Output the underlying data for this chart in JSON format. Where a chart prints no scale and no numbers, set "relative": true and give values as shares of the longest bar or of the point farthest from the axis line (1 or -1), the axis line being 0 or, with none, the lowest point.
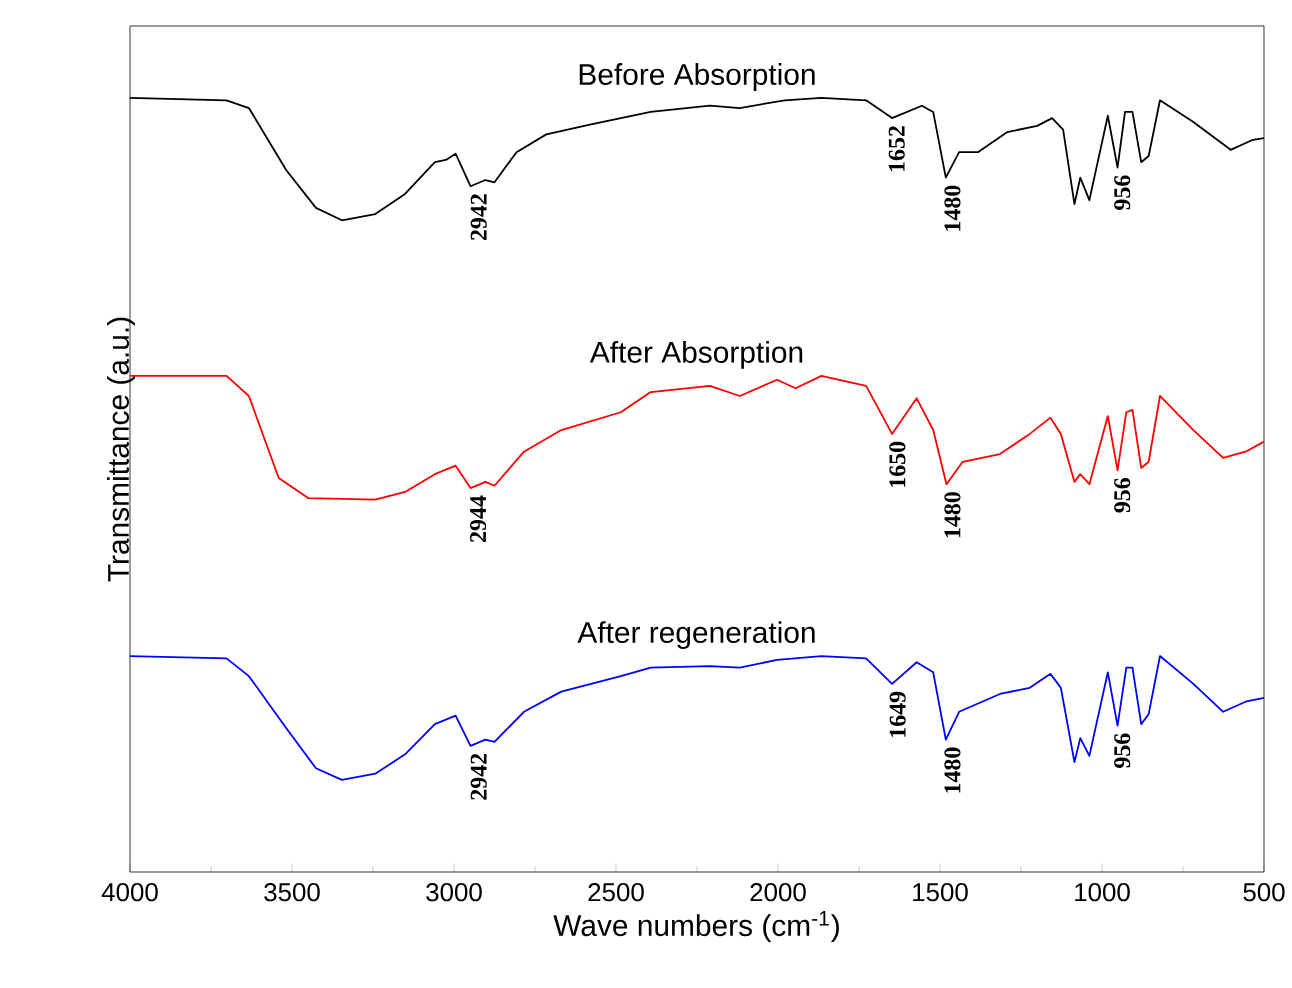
{
  "chart_data": {
    "type": "line",
    "relative": true,
    "xlabel": "Wave numbers (cm$^{-1}$)",
    "ylabel": "Transmittance (a.u.)",
    "xlim": [
      4000,
      500
    ],
    "xticks": [
      4000,
      3500,
      3000,
      2500,
      2000,
      1500,
      1000,
      500
    ],
    "series": [
      {
        "name": "Before Absorption",
        "color": "#000000",
        "x": [
          4000,
          3702,
          3633,
          3518,
          3426,
          3346,
          3243,
          3151,
          3059,
          3025,
          2995,
          2949,
          2903,
          2875,
          2807,
          2715,
          2577,
          2393,
          2210,
          2118,
          1980,
          1866,
          1728,
          1648,
          1556,
          1521,
          1482,
          1441,
          1383,
          1292,
          1200,
          1154,
          1120,
          1085,
          1067,
          1039,
          982,
          952,
          929,
          906,
          879,
          856,
          821,
          718,
          603,
          534,
          500
        ],
        "values": [
          1.0,
          0.997,
          0.987,
          0.907,
          0.858,
          0.842,
          0.85,
          0.876,
          0.917,
          0.92,
          0.928,
          0.886,
          0.894,
          0.891,
          0.93,
          0.953,
          0.966,
          0.982,
          0.99,
          0.987,
          0.997,
          1.0,
          0.997,
          0.974,
          0.99,
          0.982,
          0.897,
          0.93,
          0.93,
          0.956,
          0.964,
          0.974,
          0.959,
          0.863,
          0.897,
          0.868,
          0.977,
          0.91,
          0.982,
          0.982,
          0.917,
          0.925,
          0.997,
          0.969,
          0.933,
          0.946,
          0.948
        ]
      },
      {
        "name": "After Absorption",
        "color": "#ff0000",
        "x": [
          4000,
          3702,
          3633,
          3541,
          3449,
          3243,
          3151,
          3059,
          2995,
          2949,
          2903,
          2875,
          2784,
          2669,
          2485,
          2393,
          2210,
          2118,
          2003,
          1946,
          1866,
          1728,
          1648,
          1572,
          1521,
          1480,
          1430,
          1315,
          1223,
          1159,
          1127,
          1085,
          1067,
          1039,
          982,
          952,
          925,
          906,
          879,
          856,
          821,
          718,
          626,
          557,
          500
        ],
        "values": [
          0.641,
          0.641,
          0.615,
          0.509,
          0.483,
          0.481,
          0.491,
          0.514,
          0.525,
          0.496,
          0.504,
          0.499,
          0.543,
          0.571,
          0.594,
          0.62,
          0.628,
          0.615,
          0.636,
          0.625,
          0.641,
          0.628,
          0.566,
          0.612,
          0.571,
          0.501,
          0.53,
          0.54,
          0.566,
          0.587,
          0.566,
          0.504,
          0.514,
          0.501,
          0.589,
          0.519,
          0.594,
          0.597,
          0.522,
          0.53,
          0.615,
          0.571,
          0.535,
          0.543,
          0.556
        ]
      },
      {
        "name": "After regeneration",
        "color": "#0000ff",
        "x": [
          4000,
          3702,
          3633,
          3518,
          3426,
          3346,
          3243,
          3151,
          3059,
          2995,
          2949,
          2903,
          2875,
          2784,
          2669,
          2485,
          2393,
          2210,
          2118,
          2003,
          1866,
          1728,
          1648,
          1572,
          1521,
          1482,
          1441,
          1315,
          1223,
          1159,
          1127,
          1085,
          1067,
          1039,
          982,
          952,
          925,
          906,
          879,
          856,
          821,
          718,
          626,
          557,
          500
        ],
        "values": [
          0.279,
          0.276,
          0.253,
          0.186,
          0.134,
          0.119,
          0.127,
          0.152,
          0.191,
          0.202,
          0.163,
          0.171,
          0.168,
          0.207,
          0.233,
          0.253,
          0.264,
          0.266,
          0.264,
          0.274,
          0.279,
          0.276,
          0.243,
          0.271,
          0.258,
          0.171,
          0.207,
          0.23,
          0.238,
          0.256,
          0.238,
          0.142,
          0.173,
          0.15,
          0.258,
          0.189,
          0.264,
          0.264,
          0.191,
          0.204,
          0.279,
          0.243,
          0.207,
          0.22,
          0.225
        ]
      }
    ],
    "annotations": [
      {
        "text": "2942",
        "x": 2942,
        "y": 0.886
      },
      {
        "text": "1652",
        "x": 1652,
        "y": 0.974
      },
      {
        "text": "1480",
        "x": 1480,
        "y": 0.897
      },
      {
        "text": "956",
        "x": 956,
        "y": 0.91
      },
      {
        "text": "2944",
        "x": 2944,
        "y": 0.496
      },
      {
        "text": "1650",
        "x": 1650,
        "y": 0.566
      },
      {
        "text": "1480",
        "x": 1480,
        "y": 0.501
      },
      {
        "text": "956",
        "x": 956,
        "y": 0.519
      },
      {
        "text": "2942",
        "x": 2942,
        "y": 0.163
      },
      {
        "text": "1649",
        "x": 1649,
        "y": 0.243
      },
      {
        "text": "1480",
        "x": 1480,
        "y": 0.171
      },
      {
        "text": "956",
        "x": 956,
        "y": 0.189
      }
    ]
  }
}
